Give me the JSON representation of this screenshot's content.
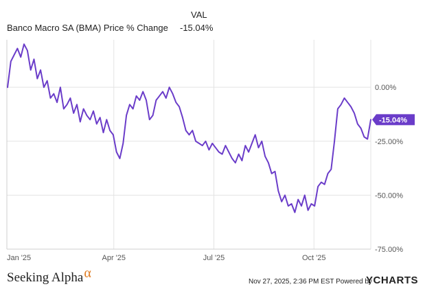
{
  "header": {
    "column_label": "VAL",
    "series_label": "Banco Macro SA (BMA) Price % Change",
    "series_value": "-15.04%"
  },
  "footer": {
    "brand": "Seeking Alpha",
    "brand_symbol": "α",
    "timestamp": "Nov 27, 2025, 2:36 PM EST Powered by",
    "provider": "YCHARTS"
  },
  "colors": {
    "line": "#6a3cc9",
    "grid": "#e3e3e3",
    "brand_symbol": "#e07a1f"
  },
  "chart_data": {
    "type": "line",
    "title": "",
    "xlabel": "",
    "ylabel": "",
    "x_ticks": [
      "Jan '25",
      "Apr '25",
      "Jul '25",
      "Oct '25"
    ],
    "y_ticks": [
      "0.00%",
      "-25.00%",
      "-50.00%",
      "-75.00%"
    ],
    "ylim": [
      -75,
      22
    ],
    "grid": true,
    "last_value_label": "-15.04%",
    "series": [
      {
        "values": [
          0,
          12,
          15,
          18,
          14,
          20,
          17,
          8,
          13,
          4,
          8,
          0,
          3,
          -5,
          -3,
          -7,
          0,
          -10,
          -8,
          -5,
          -12,
          -8,
          -16,
          -10,
          -13,
          -15,
          -11,
          -17,
          -14,
          -21,
          -15,
          -20,
          -22,
          -30,
          -33,
          -26,
          -13,
          -8,
          -10,
          -4,
          -6,
          -2,
          -6,
          -15,
          -13,
          -6,
          -4,
          -2,
          -5,
          0,
          -3,
          -7,
          -9,
          -14,
          -20,
          -22,
          -20,
          -25,
          -26,
          -27,
          -25,
          -29,
          -26,
          -28,
          -30,
          -31,
          -27,
          -30,
          -33,
          -35,
          -31,
          -34,
          -27,
          -30,
          -26,
          -22,
          -28,
          -25,
          -32,
          -35,
          -40,
          -39,
          -48,
          -53,
          -50,
          -55,
          -54,
          -58,
          -52,
          -55,
          -50,
          -57,
          -54,
          -55,
          -46,
          -44,
          -45,
          -40,
          -38,
          -25,
          -10,
          -8,
          -5,
          -7,
          -9,
          -12,
          -17,
          -19,
          -23,
          -24,
          -15
        ]
      }
    ]
  }
}
